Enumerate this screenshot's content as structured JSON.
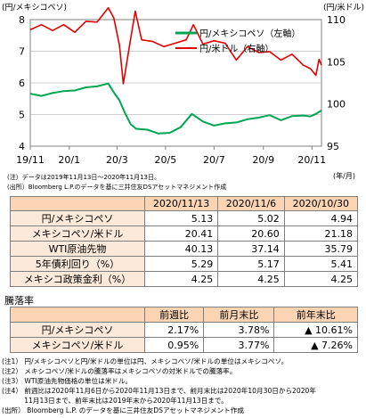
{
  "chart_data": {
    "type": "line",
    "left_axis_label": "(円/メキシコペソ)",
    "right_axis_label": "(円/米ドル)",
    "x_unit": "(年/月)",
    "left_ticks": [
      "8",
      "7",
      "6",
      "5",
      "4"
    ],
    "right_ticks": [
      "110",
      "105",
      "100",
      "95"
    ],
    "left_ylim": [
      4,
      8
    ],
    "right_ylim": [
      95,
      110
    ],
    "x_ticks": [
      "19/11",
      "20/1",
      "20/3",
      "20/5",
      "20/7",
      "20/9",
      "20/11"
    ],
    "x_tick_dates": [
      "2019-11-01",
      "2020-01-01",
      "2020-03-01",
      "2020-05-01",
      "2020-07-01",
      "2020-09-01",
      "2020-11-01"
    ],
    "x_range": [
      "2019-11-13",
      "2020-11-13"
    ],
    "series": [
      {
        "name": "円/メキシコペソ（左軸）",
        "axis": "left",
        "color": "#00a651",
        "points": [
          [
            "2019-11-13",
            5.66
          ],
          [
            "2019-11-27",
            5.59
          ],
          [
            "2019-12-11",
            5.68
          ],
          [
            "2019-12-25",
            5.74
          ],
          [
            "2020-01-08",
            5.76
          ],
          [
            "2020-01-22",
            5.86
          ],
          [
            "2020-02-05",
            5.89
          ],
          [
            "2020-02-19",
            5.98
          ],
          [
            "2020-02-26",
            5.7
          ],
          [
            "2020-03-04",
            5.45
          ],
          [
            "2020-03-11",
            5.05
          ],
          [
            "2020-03-18",
            4.7
          ],
          [
            "2020-03-25",
            4.55
          ],
          [
            "2020-04-08",
            4.52
          ],
          [
            "2020-04-22",
            4.4
          ],
          [
            "2020-05-06",
            4.42
          ],
          [
            "2020-05-20",
            4.6
          ],
          [
            "2020-06-03",
            5.02
          ],
          [
            "2020-06-17",
            4.78
          ],
          [
            "2020-07-01",
            4.65
          ],
          [
            "2020-07-15",
            4.72
          ],
          [
            "2020-07-29",
            4.75
          ],
          [
            "2020-08-12",
            4.85
          ],
          [
            "2020-08-26",
            4.9
          ],
          [
            "2020-09-09",
            4.98
          ],
          [
            "2020-09-23",
            4.82
          ],
          [
            "2020-10-07",
            4.95
          ],
          [
            "2020-10-21",
            4.97
          ],
          [
            "2020-10-30",
            4.94
          ],
          [
            "2020-11-06",
            5.02
          ],
          [
            "2020-11-13",
            5.13
          ]
        ]
      },
      {
        "name": "円/米ドル（右軸）",
        "axis": "right",
        "color": "#e00000",
        "points": [
          [
            "2019-11-13",
            108.8
          ],
          [
            "2019-11-27",
            109.4
          ],
          [
            "2019-12-11",
            108.7
          ],
          [
            "2019-12-25",
            109.4
          ],
          [
            "2020-01-08",
            108.5
          ],
          [
            "2020-01-22",
            109.8
          ],
          [
            "2020-02-05",
            109.7
          ],
          [
            "2020-02-19",
            111.4
          ],
          [
            "2020-02-26",
            110.2
          ],
          [
            "2020-03-04",
            107.0
          ],
          [
            "2020-03-09",
            102.4
          ],
          [
            "2020-03-16",
            106.5
          ],
          [
            "2020-03-24",
            111.0
          ],
          [
            "2020-04-01",
            107.6
          ],
          [
            "2020-04-15",
            107.4
          ],
          [
            "2020-04-29",
            106.8
          ],
          [
            "2020-05-13",
            107.2
          ],
          [
            "2020-05-27",
            107.6
          ],
          [
            "2020-06-05",
            109.4
          ],
          [
            "2020-06-17",
            107.1
          ],
          [
            "2020-07-01",
            107.5
          ],
          [
            "2020-07-15",
            107.2
          ],
          [
            "2020-07-29",
            105.2
          ],
          [
            "2020-08-12",
            106.8
          ],
          [
            "2020-08-26",
            106.1
          ],
          [
            "2020-09-09",
            106.2
          ],
          [
            "2020-09-23",
            105.2
          ],
          [
            "2020-10-07",
            105.9
          ],
          [
            "2020-10-21",
            104.6
          ],
          [
            "2020-10-30",
            104.2
          ],
          [
            "2020-11-06",
            103.4
          ],
          [
            "2020-11-10",
            105.3
          ],
          [
            "2020-11-13",
            104.6
          ]
        ]
      }
    ]
  },
  "chart_notes": [
    "(注）データは2019年11月13日～2020年11月13日。",
    "(出所）Bloomberg L.P.のデータを基に三井住友DSアセットマネジメント作成"
  ],
  "table1": {
    "columns": [
      "2020/11/13",
      "2020/11/6",
      "2020/10/30"
    ],
    "rows": [
      {
        "label": "円/メキシコペソ",
        "values": [
          "5.13",
          "5.02",
          "4.94"
        ]
      },
      {
        "label": "メキシコペソ/米ドル",
        "values": [
          "20.41",
          "20.60",
          "21.18"
        ]
      },
      {
        "label": "WTI原油先物",
        "values": [
          "40.13",
          "37.14",
          "35.79"
        ]
      },
      {
        "label": "5年債利回り（%）",
        "values": [
          "5.29",
          "5.17",
          "5.41"
        ]
      },
      {
        "label": "メキシコ政策金利（%）",
        "values": [
          "4.25",
          "4.25",
          "4.25"
        ]
      }
    ]
  },
  "table2": {
    "title": "騰落率",
    "columns": [
      "前週比",
      "前月末比",
      "前年末比"
    ],
    "rows": [
      {
        "label": "円/メキシコペソ",
        "values": [
          "2.17%",
          "3.78%",
          "▲ 10.61%"
        ]
      },
      {
        "label": "メキシコペソ/米ドル",
        "values": [
          "0.95%",
          "3.77%",
          "▲ 7.26%"
        ]
      }
    ]
  },
  "footnotes": [
    "(注1） 円/メキシコペソと円/米ドルの単位は円、メキシコペソ/米ドルの単位はメキシコペソ。",
    "(注2） メキシコペソ/米ドルの騰落率はメキシコペソの対米ドルでの騰落率。",
    "(注3） WTI原油先物価格の単位は米ドル。",
    "(注4） 前週比は2020年11月6日から2020年11月13日まで、前月末比は2020年10月30日から2020年",
    "　　　 11月13日まで、前年末比は2019年末から2020年11月13日まで。",
    "(出所） Bloomberg L.P. のデータを基に三井住友DSアセットマネジメント作成"
  ]
}
